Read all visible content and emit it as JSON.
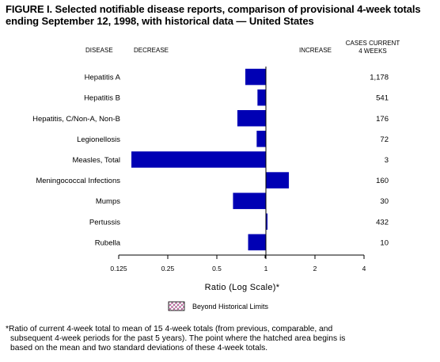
{
  "figure": {
    "title_line1": "FIGURE I. Selected notifiable disease reports, comparison of provisional 4-week totals",
    "title_line2": "ending September 12, 1998, with historical data — United States"
  },
  "chart_data": {
    "type": "bar",
    "orientation": "horizontal",
    "scale": "log2",
    "xlim": [
      0.125,
      4
    ],
    "xticks": [
      0.125,
      0.25,
      0.5,
      1,
      2,
      4
    ],
    "xtick_labels": [
      "0.125",
      "0.25",
      "0.5",
      "1",
      "2",
      "4"
    ],
    "baseline": 1,
    "xlabel": "Ratio (Log Scale)*",
    "headers": {
      "disease": "DISEASE",
      "decrease": "DECREASE",
      "increase": "INCREASE",
      "cases_line1": "CASES CURRENT",
      "cases_line2": "4 WEEKS"
    },
    "categories": [
      "Hepatitis A",
      "Hepatitis B",
      "Hepatitis, C/Non-A, Non-B",
      "Legionellosis",
      "Measles, Total",
      "Meningococcal Infections",
      "Mumps",
      "Pertussis",
      "Rubella"
    ],
    "values": [
      0.75,
      0.89,
      0.67,
      0.88,
      0.15,
      1.38,
      0.63,
      1.02,
      0.78
    ],
    "cases_current_4_weeks": [
      "1,178",
      "541",
      "176",
      "72",
      "3",
      "160",
      "30",
      "432",
      "10"
    ],
    "legend": {
      "label": "Beyond Historical Limits",
      "position": "bottom-center",
      "pattern": "hatched"
    },
    "grid": false,
    "colors": {
      "bar": "#0000b4",
      "hatch": "#cc3399"
    }
  },
  "footnote": {
    "line1": "*Ratio of current 4-week total to mean of 15 4-week totals (from previous, comparable, and",
    "line2": "subsequent 4-week periods for the past 5 years). The point where the hatched area begins is",
    "line3": "based on the mean and two standard deviations of these 4-week totals."
  }
}
